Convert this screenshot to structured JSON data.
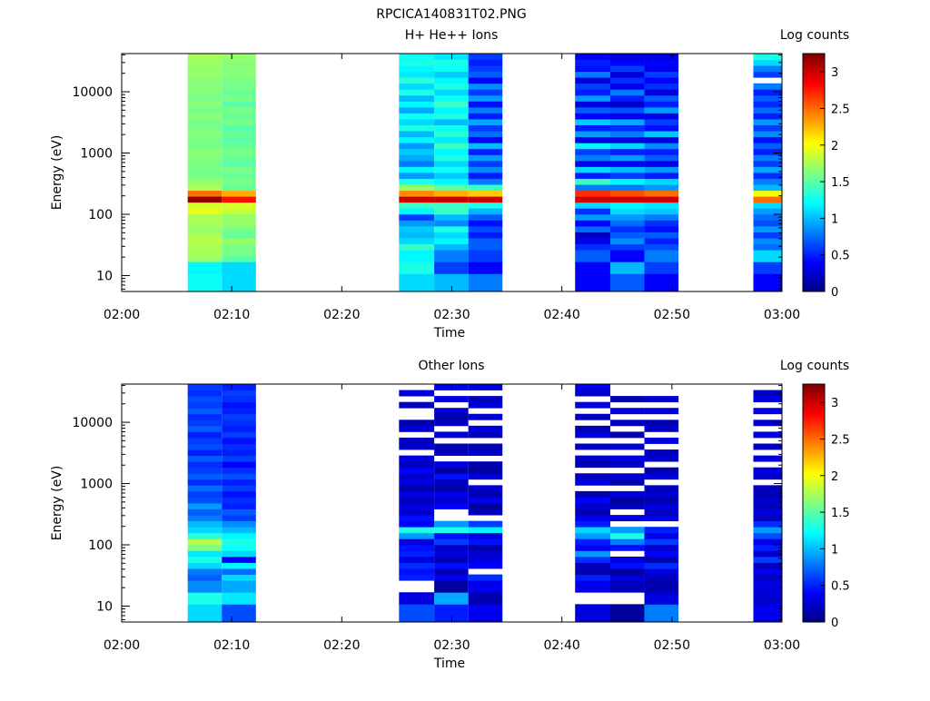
{
  "figure_title": "RPCICA140831T02.PNG",
  "colors": {
    "frame": "#000000",
    "background": "#ffffff",
    "colormap": "jet"
  },
  "chart_data": [
    {
      "type": "heatmap",
      "title": "H+ He++ Ions",
      "xlabel": "Time",
      "ylabel": "Energy (eV)",
      "xtick_labels": [
        "02:00",
        "02:10",
        "02:20",
        "02:30",
        "02:40",
        "02:50",
        "03:00"
      ],
      "xlim_minutes": [
        0,
        60
      ],
      "ytick_labels": [
        "10",
        "100",
        "1000",
        "10000"
      ],
      "ylim": [
        5.5,
        42000
      ],
      "yscale": "log",
      "colorbar": {
        "label": "Log counts",
        "range": [
          0,
          3.25
        ],
        "tick_labels": [
          "0",
          "0.5",
          "1",
          "1.5",
          "2",
          "2.5",
          "3"
        ]
      },
      "columns": [
        {
          "t0": 6.0,
          "t1": 9.1,
          "values": [
            1.25,
            1.25,
            1.25,
            1.2,
            1.2,
            1.7,
            1.75,
            1.75,
            1.8,
            1.75,
            1.7,
            1.75,
            1.75,
            1.95,
            1.9,
            3.2,
            2.5,
            1.75,
            1.7,
            1.6,
            1.6,
            1.6,
            1.65,
            1.65,
            1.6,
            1.6,
            1.65,
            1.6,
            1.6,
            1.65,
            1.6,
            1.65,
            1.6,
            1.65,
            1.65,
            1.65,
            1.7,
            1.7,
            1.7,
            1.75
          ]
        },
        {
          "t0": 9.1,
          "t1": 12.2,
          "values": [
            1.1,
            1.1,
            1.1,
            1.1,
            1.1,
            1.5,
            1.6,
            1.6,
            1.7,
            1.55,
            1.6,
            1.7,
            1.7,
            1.85,
            1.9,
            2.8,
            2.3,
            1.55,
            1.6,
            1.55,
            1.6,
            1.5,
            1.55,
            1.6,
            1.55,
            1.5,
            1.55,
            1.5,
            1.6,
            1.55,
            1.6,
            1.5,
            1.6,
            1.55,
            1.6,
            1.6,
            1.65,
            1.65,
            1.65,
            1.7
          ]
        },
        {
          "t0": 25.2,
          "t1": 28.4,
          "values": [
            1.1,
            1.1,
            1.1,
            1.3,
            1.3,
            1.2,
            1.2,
            1.4,
            1.1,
            1.0,
            1.05,
            0.9,
            0.6,
            1.2,
            1.4,
            3.0,
            2.4,
            1.7,
            1.3,
            0.9,
            1.2,
            0.8,
            0.95,
            1.05,
            0.9,
            1.2,
            1.0,
            1.3,
            1.1,
            1.25,
            0.95,
            1.2,
            1.0,
            1.3,
            1.1,
            1.35,
            1.15,
            1.2,
            1.3,
            1.25
          ]
        },
        {
          "t0": 28.4,
          "t1": 31.5,
          "values": [
            1.0,
            1.0,
            1.0,
            0.6,
            0.6,
            0.8,
            0.8,
            1.0,
            1.2,
            1.1,
            1.3,
            0.85,
            1.0,
            1.4,
            1.4,
            3.0,
            2.3,
            1.5,
            1.2,
            1.05,
            1.25,
            1.1,
            1.3,
            1.2,
            1.4,
            1.15,
            1.35,
            1.25,
            1.0,
            1.3,
            1.2,
            1.4,
            1.25,
            1.1,
            1.3,
            1.2,
            1.05,
            1.25,
            1.3,
            1.15
          ]
        },
        {
          "t0": 31.5,
          "t1": 34.6,
          "values": [
            0.8,
            0.8,
            0.8,
            0.4,
            0.4,
            0.6,
            0.6,
            0.7,
            0.7,
            0.5,
            0.65,
            0.45,
            0.7,
            1.0,
            1.3,
            3.0,
            2.2,
            1.4,
            0.8,
            0.5,
            0.85,
            0.6,
            0.9,
            0.5,
            1.0,
            0.4,
            0.75,
            0.6,
            0.95,
            0.5,
            0.8,
            0.45,
            0.9,
            0.6,
            0.85,
            0.4,
            0.7,
            0.6,
            0.5,
            0.6
          ]
        },
        {
          "t0": 41.2,
          "t1": 44.4,
          "values": [
            0.4,
            0.4,
            0.4,
            0.4,
            0.4,
            0.7,
            0.7,
            0.55,
            0.35,
            0.2,
            0.75,
            0.4,
            0.9,
            0.55,
            1.1,
            3.0,
            2.7,
            0.8,
            1.4,
            0.5,
            1.1,
            0.35,
            0.8,
            0.6,
            1.2,
            0.3,
            0.9,
            0.5,
            1.05,
            0.4,
            0.7,
            0.3,
            0.9,
            0.5,
            0.6,
            0.3,
            0.8,
            0.45,
            0.5,
            0.4
          ]
        },
        {
          "t0": 44.4,
          "t1": 47.5,
          "values": [
            0.7,
            0.7,
            0.7,
            1.0,
            1.0,
            0.4,
            0.4,
            0.6,
            0.85,
            0.7,
            0.55,
            0.75,
            0.9,
            1.1,
            1.2,
            3.0,
            2.6,
            0.8,
            1.2,
            0.6,
            1.0,
            0.4,
            0.9,
            0.5,
            1.1,
            0.3,
            0.8,
            0.55,
            0.95,
            0.35,
            0.65,
            0.25,
            0.5,
            0.8,
            0.35,
            0.55,
            0.3,
            0.6,
            0.4,
            0.3
          ]
        },
        {
          "t0": 47.5,
          "t1": 50.6,
          "values": [
            0.4,
            0.4,
            0.4,
            0.6,
            0.6,
            0.8,
            0.8,
            0.65,
            0.5,
            0.7,
            0.45,
            0.55,
            0.8,
            1.05,
            1.15,
            3.0,
            2.5,
            0.9,
            1.1,
            0.5,
            0.9,
            0.35,
            0.7,
            0.5,
            0.85,
            0.3,
            1.05,
            0.45,
            0.6,
            0.35,
            0.9,
            0.5,
            0.7,
            0.3,
            0.55,
            0.4,
            0.6,
            0.35,
            0.4,
            0.3
          ]
        },
        {
          "t0": 57.4,
          "t1": 60.0,
          "values": [
            0.4,
            0.4,
            0.4,
            0.6,
            0.6,
            1.1,
            1.1,
            0.75,
            0.85,
            0.6,
            0.9,
            0.65,
            0.75,
            0.9,
            1.1,
            2.5,
            2.0,
            1.0,
            0.8,
            0.55,
            0.95,
            0.6,
            0.8,
            0.5,
            0.7,
            0.45,
            0.85,
            0.6,
            0.9,
            0.5,
            0.75,
            0.55,
            0.7,
            0.5,
            0.8,
            null,
            0.6,
            0.8,
            1.1,
            1.3
          ]
        }
      ]
    },
    {
      "type": "heatmap",
      "title": "Other Ions",
      "xlabel": "Time",
      "ylabel": "Energy (eV)",
      "xtick_labels": [
        "02:00",
        "02:10",
        "02:20",
        "02:30",
        "02:40",
        "02:50",
        "03:00"
      ],
      "xlim_minutes": [
        0,
        60
      ],
      "ytick_labels": [
        "10",
        "100",
        "1000",
        "10000"
      ],
      "ylim": [
        5.5,
        42000
      ],
      "yscale": "log",
      "colorbar": {
        "label": "Log counts",
        "range": [
          0,
          3.25
        ],
        "tick_labels": [
          "0",
          "0.5",
          "1",
          "1.5",
          "2",
          "2.5",
          "3"
        ]
      },
      "columns": [
        {
          "t0": 6.0,
          "t1": 9.1,
          "values": [
            1.1,
            1.1,
            1.1,
            1.3,
            1.3,
            0.85,
            0.85,
            0.7,
            0.8,
            1.1,
            1.3,
            1.15,
            1.6,
            1.8,
            1.35,
            1.1,
            1.0,
            0.8,
            0.7,
            0.9,
            0.65,
            0.6,
            0.75,
            0.55,
            0.7,
            0.6,
            0.55,
            0.7,
            0.5,
            0.65,
            0.6,
            0.5,
            0.7,
            0.6,
            0.55,
            0.7,
            0.6,
            0.65,
            0.55,
            0.6
          ]
        },
        {
          "t0": 9.1,
          "t1": 12.2,
          "values": [
            0.65,
            0.65,
            0.65,
            1.15,
            1.15,
            0.95,
            0.95,
            1.1,
            0.75,
            1.2,
            0.4,
            1.1,
            1.25,
            1.3,
            1.2,
            1.0,
            0.85,
            0.6,
            0.7,
            0.5,
            0.55,
            0.45,
            0.6,
            0.5,
            0.65,
            0.55,
            0.4,
            0.6,
            0.5,
            0.55,
            0.45,
            0.6,
            0.5,
            0.55,
            0.6,
            0.5,
            0.45,
            0.55,
            0.6,
            0.5
          ]
        },
        {
          "t0": 25.2,
          "t1": 28.4,
          "values": [
            0.65,
            0.65,
            0.65,
            0.3,
            0.3,
            null,
            null,
            0.5,
            0.45,
            0.55,
            0.3,
            0.5,
            0.45,
            0.3,
            0.9,
            1.3,
            0.4,
            0.45,
            0.25,
            0.3,
            0.2,
            0.35,
            0.15,
            0.3,
            0.25,
            0.4,
            0.2,
            0.3,
            null,
            0.25,
            0.2,
            null,
            0.3,
            0.15,
            null,
            null,
            0.2,
            null,
            0.3,
            null
          ]
        },
        {
          "t0": 28.4,
          "t1": 31.5,
          "values": [
            0.5,
            0.5,
            0.5,
            0.95,
            0.95,
            0.1,
            0.1,
            0.35,
            0.2,
            0.45,
            0.15,
            0.3,
            0.25,
            0.6,
            0.45,
            1.3,
            0.9,
            null,
            null,
            0.4,
            0.25,
            0.35,
            0.15,
            0.2,
            0.45,
            0.1,
            0.3,
            null,
            0.2,
            0.15,
            null,
            0.3,
            null,
            0.2,
            0.15,
            0.25,
            null,
            0.3,
            null,
            0.35
          ]
        },
        {
          "t0": 31.5,
          "t1": 34.6,
          "values": [
            0.35,
            0.35,
            0.35,
            0.15,
            0.15,
            0.35,
            0.35,
            0.55,
            null,
            0.4,
            0.3,
            0.25,
            0.15,
            0.45,
            0.3,
            1.2,
            0.6,
            null,
            0.2,
            0.1,
            0.35,
            0.15,
            0.25,
            null,
            0.3,
            0.1,
            0.15,
            null,
            0.25,
            0.15,
            null,
            0.2,
            0.3,
            null,
            0.25,
            null,
            0.3,
            0.2,
            null,
            0.3
          ]
        },
        {
          "t0": 41.2,
          "t1": 44.4,
          "values": [
            0.3,
            0.3,
            0.3,
            null,
            null,
            0.35,
            0.35,
            0.5,
            0.15,
            0.2,
            0.55,
            0.9,
            0.4,
            0.5,
            0.9,
            1.1,
            0.5,
            0.35,
            0.15,
            0.25,
            0.4,
            0.15,
            null,
            0.3,
            0.2,
            null,
            0.15,
            0.25,
            null,
            0.2,
            null,
            0.3,
            0.15,
            null,
            0.2,
            null,
            0.3,
            null,
            0.25,
            0.35
          ]
        },
        {
          "t0": 44.4,
          "t1": 47.5,
          "values": [
            0.1,
            0.1,
            0.1,
            null,
            null,
            0.2,
            0.2,
            0.3,
            0.1,
            0.45,
            0.3,
            null,
            0.45,
            0.8,
            1.3,
            0.9,
            null,
            0.3,
            null,
            0.2,
            0.1,
            0.3,
            null,
            0.15,
            0.25,
            null,
            0.2,
            0.3,
            null,
            0.25,
            null,
            0.15,
            null,
            0.2,
            null,
            0.3,
            null,
            0.15,
            null,
            null
          ]
        },
        {
          "t0": 47.5,
          "t1": 50.6,
          "values": [
            0.8,
            0.8,
            0.8,
            0.3,
            0.3,
            0.15,
            0.15,
            0.2,
            0.3,
            0.55,
            0.15,
            0.4,
            0.25,
            0.6,
            0.35,
            0.5,
            null,
            0.35,
            0.2,
            0.3,
            0.15,
            0.25,
            0.2,
            null,
            0.3,
            0.15,
            null,
            0.25,
            0.2,
            null,
            0.3,
            null,
            0.25,
            0.15,
            null,
            0.3,
            null,
            0.25,
            null,
            null
          ]
        },
        {
          "t0": 57.4,
          "t1": 60.0,
          "values": [
            0.35,
            0.35,
            0.35,
            0.25,
            0.25,
            0.3,
            0.3,
            0.2,
            0.35,
            0.2,
            0.6,
            0.25,
            0.5,
            0.35,
            0.65,
            0.9,
            0.55,
            0.2,
            0.3,
            0.2,
            0.25,
            0.15,
            0.2,
            null,
            0.25,
            0.3,
            null,
            0.3,
            null,
            0.2,
            null,
            0.3,
            null,
            0.25,
            null,
            0.35,
            null,
            0.3,
            0.2,
            null
          ]
        }
      ]
    }
  ]
}
